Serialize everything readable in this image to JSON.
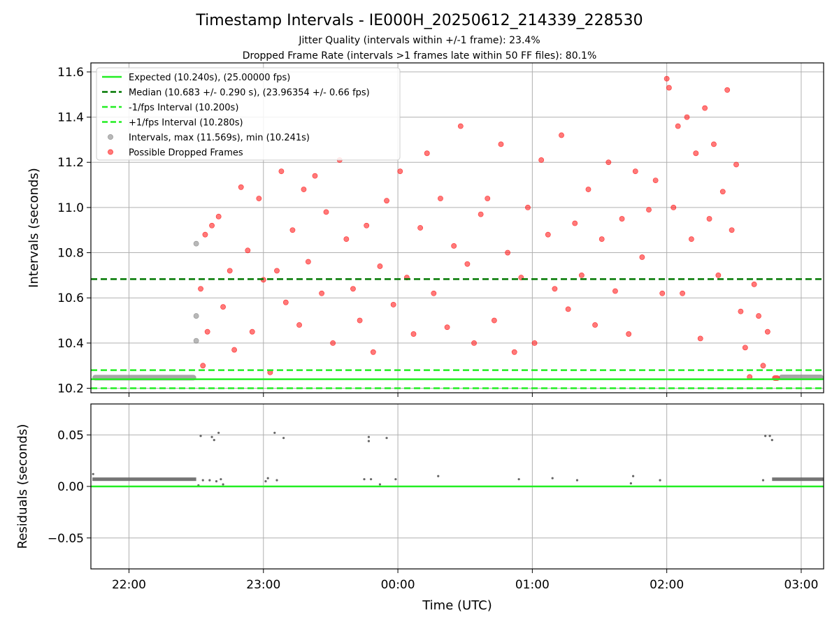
{
  "figure": {
    "title": "Timestamp Intervals - IE000H_20250612_214339_228530",
    "subtitle_1": "Jitter Quality (intervals within +/-1 frame): 23.4%",
    "subtitle_2": "Dropped Frame Rate (intervals >1 frames late within 50 FF files): 80.1%",
    "colors": {
      "expected": "#22ee22",
      "median": "#007700",
      "interval_bounds": "#22ee22",
      "normal_points": "#888888",
      "dropped_points": "#ff2020",
      "residual_points": "#666666",
      "grid": "#b0b0b0"
    }
  },
  "chart_data": [
    {
      "type": "scatter",
      "name": "intervals-panel",
      "xlabel": "",
      "ylabel": "Intervals (seconds)",
      "xlim": [
        "21:43",
        "03:10"
      ],
      "ylim": [
        10.18,
        11.64
      ],
      "yticks": [
        10.2,
        10.4,
        10.6,
        10.8,
        11.0,
        11.2,
        11.4,
        11.6
      ],
      "ytick_labels": [
        "10.2",
        "10.4",
        "10.6",
        "10.8",
        "11.0",
        "11.2",
        "11.4",
        "11.6"
      ],
      "xticks": [
        "22:00",
        "23:00",
        "00:00",
        "01:00",
        "02:00",
        "03:00"
      ],
      "grid": true,
      "legend_position": "top-left",
      "legend": [
        {
          "label": "Expected (10.240s), (25.00000 fps)",
          "style": "solid",
          "color": "#22ee22"
        },
        {
          "label": "Median (10.683 +/- 0.290 s), (23.96354 +/- 0.66 fps)",
          "style": "dashed",
          "color": "#007700"
        },
        {
          "label": "-1/fps Interval (10.200s)",
          "style": "dashed",
          "color": "#22ee22"
        },
        {
          "label": "+1/fps Interval (10.280s)",
          "style": "dashed",
          "color": "#22ee22"
        },
        {
          "label": "Intervals, max (11.569s), min (10.241s)",
          "style": "marker",
          "color": "#888888"
        },
        {
          "label": "Possible Dropped Frames",
          "style": "marker",
          "color": "#ff2020"
        }
      ],
      "reference_lines": {
        "expected": 10.24,
        "median": 10.683,
        "minus_1fps": 10.2,
        "plus_1fps": 10.28
      },
      "segments": [
        {
          "name": "normal-run-start",
          "start": "21:43:40",
          "end": "22:30:00",
          "value": 10.247,
          "kind": "normal"
        },
        {
          "name": "normal-run-end",
          "start": "02:50:00",
          "end": "03:10:00",
          "value": 10.248,
          "kind": "normal"
        },
        {
          "name": "dropped-run-end",
          "start": "02:47:00",
          "end": "02:50:30",
          "value": 10.245,
          "kind": "dropped"
        }
      ],
      "series": [
        {
          "name": "Intervals",
          "kind": "normal",
          "points": [
            [
              "22:30",
              "10.84"
            ],
            [
              "22:30",
              "10.52"
            ],
            [
              "22:30",
              "10.41"
            ]
          ]
        },
        {
          "name": "Possible Dropped Frames",
          "kind": "dropped",
          "points": [
            [
              "22:32",
              "10.64"
            ],
            [
              "22:33",
              "10.30"
            ],
            [
              "22:34",
              "10.88"
            ],
            [
              "22:35",
              "10.45"
            ],
            [
              "22:37",
              "10.92"
            ],
            [
              "22:40",
              "10.96"
            ],
            [
              "22:42",
              "10.56"
            ],
            [
              "22:45",
              "10.72"
            ],
            [
              "22:47",
              "10.37"
            ],
            [
              "22:50",
              "11.09"
            ],
            [
              "22:53",
              "10.81"
            ],
            [
              "22:55",
              "10.45"
            ],
            [
              "22:58",
              "11.04"
            ],
            [
              "23:00",
              "10.68"
            ],
            [
              "23:03",
              "10.27"
            ],
            [
              "23:06",
              "10.72"
            ],
            [
              "23:08",
              "11.16"
            ],
            [
              "23:10",
              "10.58"
            ],
            [
              "23:13",
              "10.90"
            ],
            [
              "23:16",
              "10.48"
            ],
            [
              "23:18",
              "11.08"
            ],
            [
              "23:20",
              "10.76"
            ],
            [
              "23:23",
              "11.14"
            ],
            [
              "23:26",
              "10.62"
            ],
            [
              "23:28",
              "10.98"
            ],
            [
              "23:31",
              "10.40"
            ],
            [
              "23:34",
              "11.21"
            ],
            [
              "23:37",
              "10.86"
            ],
            [
              "23:40",
              "10.64"
            ],
            [
              "23:43",
              "10.50"
            ],
            [
              "23:46",
              "10.92"
            ],
            [
              "23:49",
              "10.36"
            ],
            [
              "23:52",
              "10.74"
            ],
            [
              "23:55",
              "11.03"
            ],
            [
              "23:58",
              "10.57"
            ],
            [
              "00:01",
              "11.16"
            ],
            [
              "00:04",
              "10.69"
            ],
            [
              "00:07",
              "10.44"
            ],
            [
              "00:10",
              "10.91"
            ],
            [
              "00:13",
              "11.24"
            ],
            [
              "00:16",
              "10.62"
            ],
            [
              "00:19",
              "11.04"
            ],
            [
              "00:22",
              "10.47"
            ],
            [
              "00:25",
              "10.83"
            ],
            [
              "00:28",
              "11.36"
            ],
            [
              "00:31",
              "10.75"
            ],
            [
              "00:34",
              "10.40"
            ],
            [
              "00:37",
              "10.97"
            ],
            [
              "00:40",
              "11.04"
            ],
            [
              "00:43",
              "10.50"
            ],
            [
              "00:46",
              "11.28"
            ],
            [
              "00:49",
              "10.80"
            ],
            [
              "00:52",
              "10.36"
            ],
            [
              "00:55",
              "10.69"
            ],
            [
              "00:58",
              "11.00"
            ],
            [
              "01:01",
              "10.40"
            ],
            [
              "01:04",
              "11.21"
            ],
            [
              "01:07",
              "10.88"
            ],
            [
              "01:10",
              "10.64"
            ],
            [
              "01:13",
              "11.32"
            ],
            [
              "01:16",
              "10.55"
            ],
            [
              "01:19",
              "10.93"
            ],
            [
              "01:22",
              "10.70"
            ],
            [
              "01:25",
              "11.08"
            ],
            [
              "01:28",
              "10.48"
            ],
            [
              "01:31",
              "10.86"
            ],
            [
              "01:34",
              "11.20"
            ],
            [
              "01:37",
              "10.63"
            ],
            [
              "01:40",
              "10.95"
            ],
            [
              "01:43",
              "10.44"
            ],
            [
              "01:46",
              "11.16"
            ],
            [
              "01:49",
              "10.78"
            ],
            [
              "01:52",
              "10.99"
            ],
            [
              "01:55",
              "11.12"
            ],
            [
              "01:58",
              "10.62"
            ],
            [
              "02:00",
              "11.57"
            ],
            [
              "02:01",
              "11.53"
            ],
            [
              "02:03",
              "11.00"
            ],
            [
              "02:05",
              "11.36"
            ],
            [
              "02:07",
              "10.62"
            ],
            [
              "02:09",
              "11.40"
            ],
            [
              "02:11",
              "10.86"
            ],
            [
              "02:13",
              "11.24"
            ],
            [
              "02:15",
              "10.42"
            ],
            [
              "02:17",
              "11.44"
            ],
            [
              "02:19",
              "10.95"
            ],
            [
              "02:21",
              "11.28"
            ],
            [
              "02:23",
              "10.70"
            ],
            [
              "02:25",
              "11.07"
            ],
            [
              "02:27",
              "11.52"
            ],
            [
              "02:29",
              "10.90"
            ],
            [
              "02:31",
              "11.19"
            ],
            [
              "02:33",
              "10.54"
            ],
            [
              "02:35",
              "10.38"
            ],
            [
              "02:37",
              "10.25"
            ],
            [
              "02:39",
              "10.66"
            ],
            [
              "02:41",
              "10.52"
            ],
            [
              "02:43",
              "10.30"
            ],
            [
              "02:45",
              "10.45"
            ]
          ]
        }
      ]
    },
    {
      "type": "scatter",
      "name": "residuals-panel",
      "xlabel": "Time (UTC)",
      "ylabel": "Residuals (seconds)",
      "xlim": [
        "21:43",
        "03:10"
      ],
      "ylim": [
        -0.08,
        0.08
      ],
      "yticks": [
        -0.05,
        0.0,
        0.05
      ],
      "ytick_labels": [
        "−0.05",
        "0.00",
        "0.05"
      ],
      "xticks": [
        "22:00",
        "23:00",
        "00:00",
        "01:00",
        "02:00",
        "03:00"
      ],
      "grid": true,
      "reference_lines": {
        "zero": 0.0
      },
      "segments": [
        {
          "name": "residual-run-start",
          "start": "21:43:40",
          "end": "22:30:00",
          "value": 0.007
        },
        {
          "name": "residual-run-end",
          "start": "02:47:00",
          "end": "03:10:00",
          "value": 0.007
        }
      ],
      "series": [
        {
          "name": "Residuals",
          "points": [
            [
              "21:44",
              "0.012"
            ],
            [
              "22:31",
              "0.001"
            ],
            [
              "22:32",
              "0.049"
            ],
            [
              "22:33",
              "0.006"
            ],
            [
              "22:36",
              "0.006"
            ],
            [
              "22:37",
              "0.048"
            ],
            [
              "22:38",
              "0.045"
            ],
            [
              "22:39",
              "0.005"
            ],
            [
              "22:40",
              "0.052"
            ],
            [
              "22:41",
              "0.007"
            ],
            [
              "22:42",
              "0.002"
            ],
            [
              "23:01",
              "0.005"
            ],
            [
              "23:02",
              "0.008"
            ],
            [
              "23:05",
              "0.052"
            ],
            [
              "23:06",
              "0.006"
            ],
            [
              "23:09",
              "0.047"
            ],
            [
              "23:45",
              "0.007"
            ],
            [
              "23:47",
              "0.048"
            ],
            [
              "23:47",
              "0.044"
            ],
            [
              "23:48",
              "0.007"
            ],
            [
              "23:52",
              "0.002"
            ],
            [
              "23:55",
              "0.047"
            ],
            [
              "23:59",
              "0.007"
            ],
            [
              "00:18",
              "0.010"
            ],
            [
              "00:54",
              "0.007"
            ],
            [
              "01:09",
              "0.008"
            ],
            [
              "01:20",
              "0.006"
            ],
            [
              "01:44",
              "0.003"
            ],
            [
              "01:45",
              "0.010"
            ],
            [
              "01:57",
              "0.006"
            ],
            [
              "02:43",
              "0.006"
            ],
            [
              "02:44",
              "0.049"
            ],
            [
              "02:46",
              "0.049"
            ],
            [
              "02:47",
              "0.045"
            ]
          ]
        }
      ]
    }
  ]
}
